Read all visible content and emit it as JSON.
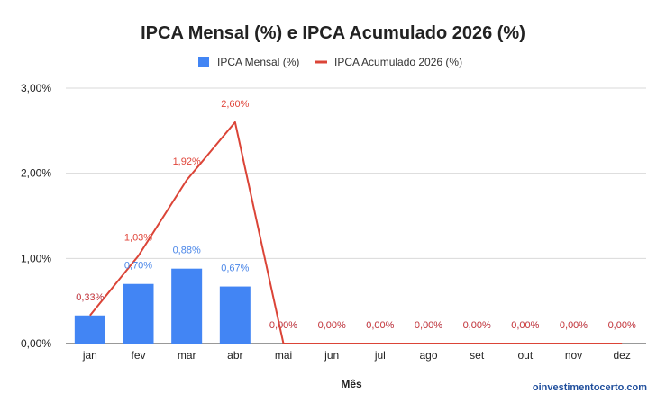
{
  "chart_data": {
    "type": "bar",
    "title": "IPCA Mensal (%) e IPCA Acumulado 2026 (%)",
    "xlabel": "Mês",
    "ylabel": "",
    "categories": [
      "jan",
      "fev",
      "mar",
      "abr",
      "mai",
      "jun",
      "jul",
      "ago",
      "set",
      "out",
      "nov",
      "dez"
    ],
    "ylim": [
      0,
      3
    ],
    "yticks": [
      0,
      1,
      2,
      3
    ],
    "ytick_labels": [
      "0,00%",
      "1,00%",
      "2,00%",
      "3,00%"
    ],
    "grid": true,
    "legend_position": "top",
    "series": [
      {
        "name": "IPCA Mensal (%)",
        "type": "bar",
        "color": "#4285f4",
        "values": [
          0.33,
          0.7,
          0.88,
          0.67,
          0,
          0,
          0,
          0,
          0,
          0,
          0,
          0
        ],
        "labels": [
          "0,33%",
          "0,70%",
          "0,88%",
          "0,67%",
          "0,00%",
          "0,00%",
          "0,00%",
          "0,00%",
          "0,00%",
          "0,00%",
          "0,00%",
          "0,00%"
        ]
      },
      {
        "name": "IPCA Acumulado 2026 (%)",
        "type": "line",
        "color": "#db4437",
        "values": [
          0.33,
          1.03,
          1.92,
          2.6,
          0,
          0,
          0,
          0,
          0,
          0,
          0,
          0
        ],
        "labels": [
          "0,33%",
          "1,03%",
          "1,92%",
          "2,60%",
          "0,00%",
          "0,00%",
          "0,00%",
          "0,00%",
          "0,00%",
          "0,00%",
          "0,00%",
          "0,00%"
        ]
      }
    ]
  },
  "credit": "oinvestimentocerto.com"
}
